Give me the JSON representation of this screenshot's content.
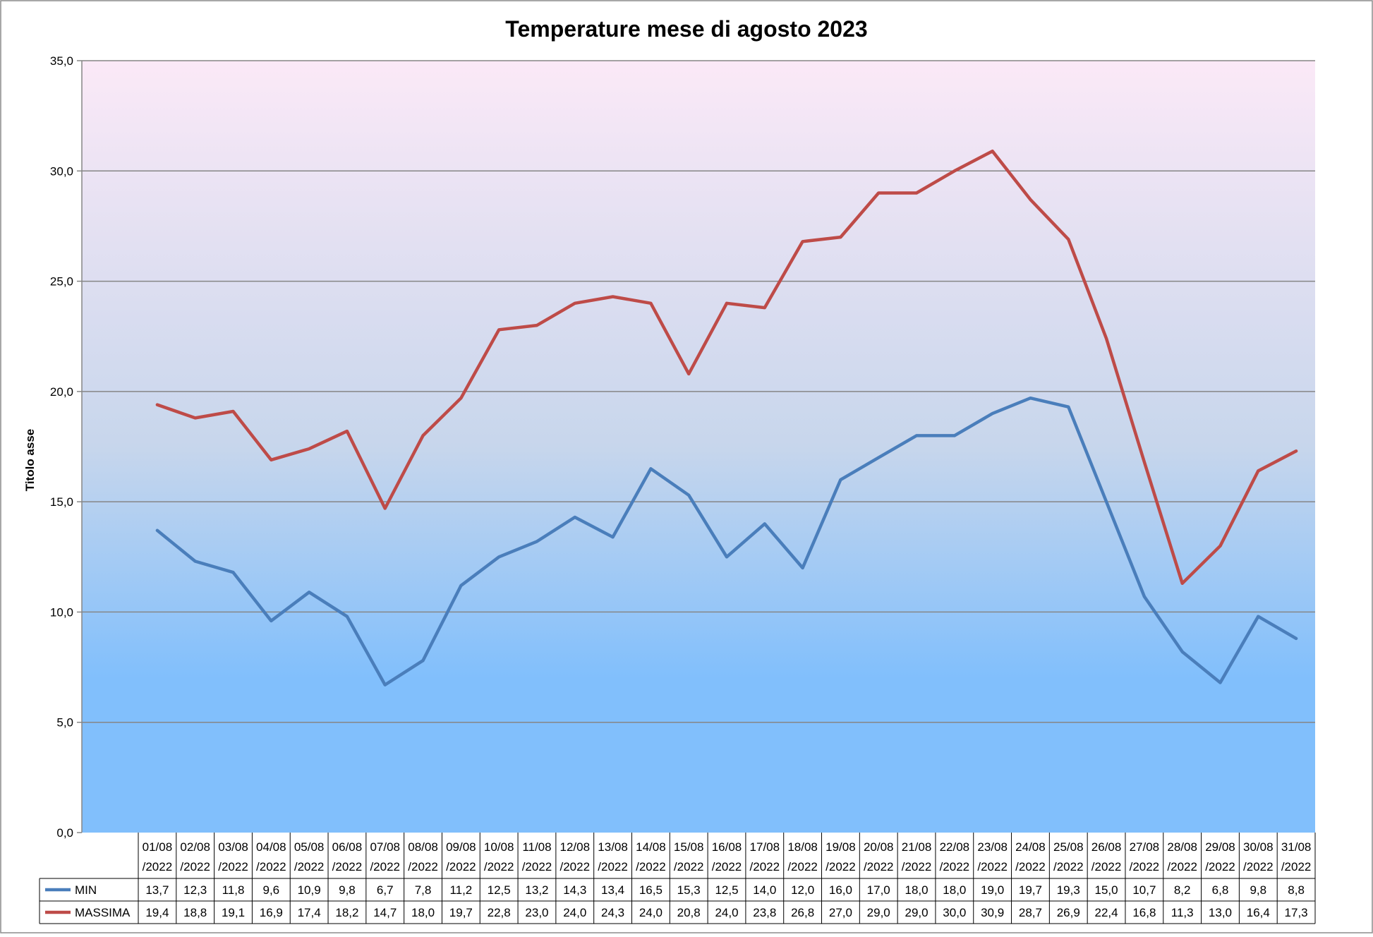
{
  "chart_data": {
    "type": "line",
    "title": "Temperature mese di agosto 2023",
    "ylabel": "Titolo asse",
    "xlabel": "",
    "ylim": [
      0,
      35
    ],
    "yticks": [
      "0,0",
      "5,0",
      "10,0",
      "15,0",
      "20,0",
      "25,0",
      "30,0",
      "35,0"
    ],
    "grid": true,
    "legend": "data table, left of rows",
    "categories": [
      "01/08/2022",
      "02/08/2022",
      "03/08/2022",
      "04/08/2022",
      "05/08/2022",
      "06/08/2022",
      "07/08/2022",
      "08/08/2022",
      "09/08/2022",
      "10/08/2022",
      "11/08/2022",
      "12/08/2022",
      "13/08/2022",
      "14/08/2022",
      "15/08/2022",
      "16/08/2022",
      "17/08/2022",
      "18/08/2022",
      "19/08/2022",
      "20/08/2022",
      "21/08/2022",
      "22/08/2022",
      "23/08/2022",
      "24/08/2022",
      "25/08/2022",
      "26/08/2022",
      "27/08/2022",
      "28/08/2022",
      "29/08/2022",
      "30/08/2022",
      "31/08/2022"
    ],
    "category_lines": [
      [
        "01/08",
        "/2022"
      ],
      [
        "02/08",
        "/2022"
      ],
      [
        "03/08",
        "/2022"
      ],
      [
        "04/08",
        "/2022"
      ],
      [
        "05/08",
        "/2022"
      ],
      [
        "06/08",
        "/2022"
      ],
      [
        "07/08",
        "/2022"
      ],
      [
        "08/08",
        "/2022"
      ],
      [
        "09/08",
        "/2022"
      ],
      [
        "10/08",
        "/2022"
      ],
      [
        "11/08",
        "/2022"
      ],
      [
        "12/08",
        "/2022"
      ],
      [
        "13/08",
        "/2022"
      ],
      [
        "14/08",
        "/2022"
      ],
      [
        "15/08",
        "/2022"
      ],
      [
        "16/08",
        "/2022"
      ],
      [
        "17/08",
        "/2022"
      ],
      [
        "18/08",
        "/2022"
      ],
      [
        "19/08",
        "/2022"
      ],
      [
        "20/08",
        "/2022"
      ],
      [
        "21/08",
        "/2022"
      ],
      [
        "22/08",
        "/2022"
      ],
      [
        "23/08",
        "/2022"
      ],
      [
        "24/08",
        "/2022"
      ],
      [
        "25/08",
        "/2022"
      ],
      [
        "26/08",
        "/2022"
      ],
      [
        "27/08",
        "/2022"
      ],
      [
        "28/08",
        "/2022"
      ],
      [
        "29/08",
        "/2022"
      ],
      [
        "30/08",
        "/2022"
      ],
      [
        "31/08",
        "/2022"
      ]
    ],
    "series": [
      {
        "name": "MIN",
        "color": "#4a7ebb",
        "values": [
          13.7,
          12.3,
          11.8,
          9.6,
          10.9,
          9.8,
          6.7,
          7.8,
          11.2,
          12.5,
          13.2,
          14.3,
          13.4,
          16.5,
          15.3,
          12.5,
          14.0,
          12.0,
          16.0,
          17.0,
          18.0,
          18.0,
          19.0,
          19.7,
          19.3,
          15.0,
          10.7,
          8.2,
          6.8,
          9.8,
          8.8
        ],
        "labels": [
          "13,7",
          "12,3",
          "11,8",
          "9,6",
          "10,9",
          "9,8",
          "6,7",
          "7,8",
          "11,2",
          "12,5",
          "13,2",
          "14,3",
          "13,4",
          "16,5",
          "15,3",
          "12,5",
          "14,0",
          "12,0",
          "16,0",
          "17,0",
          "18,0",
          "18,0",
          "19,0",
          "19,7",
          "19,3",
          "15,0",
          "10,7",
          "8,2",
          "6,8",
          "9,8",
          "8,8"
        ]
      },
      {
        "name": "MASSIMA",
        "color": "#be4b48",
        "values": [
          19.4,
          18.8,
          19.1,
          16.9,
          17.4,
          18.2,
          14.7,
          18.0,
          19.7,
          22.8,
          23.0,
          24.0,
          24.3,
          24.0,
          20.8,
          24.0,
          23.8,
          26.8,
          27.0,
          29.0,
          29.0,
          30.0,
          30.9,
          28.7,
          26.9,
          22.4,
          16.8,
          11.3,
          13.0,
          16.4,
          17.3
        ],
        "labels": [
          "19,4",
          "18,8",
          "19,1",
          "16,9",
          "17,4",
          "18,2",
          "14,7",
          "18,0",
          "19,7",
          "22,8",
          "23,0",
          "24,0",
          "24,3",
          "24,0",
          "20,8",
          "24,0",
          "23,8",
          "26,8",
          "27,0",
          "29,0",
          "29,0",
          "30,0",
          "30,9",
          "28,7",
          "26,9",
          "22,4",
          "16,8",
          "11,3",
          "13,0",
          "16,4",
          "17,3"
        ]
      }
    ],
    "plot_gradient": [
      "#fbe9f7",
      "#81bffc"
    ]
  }
}
